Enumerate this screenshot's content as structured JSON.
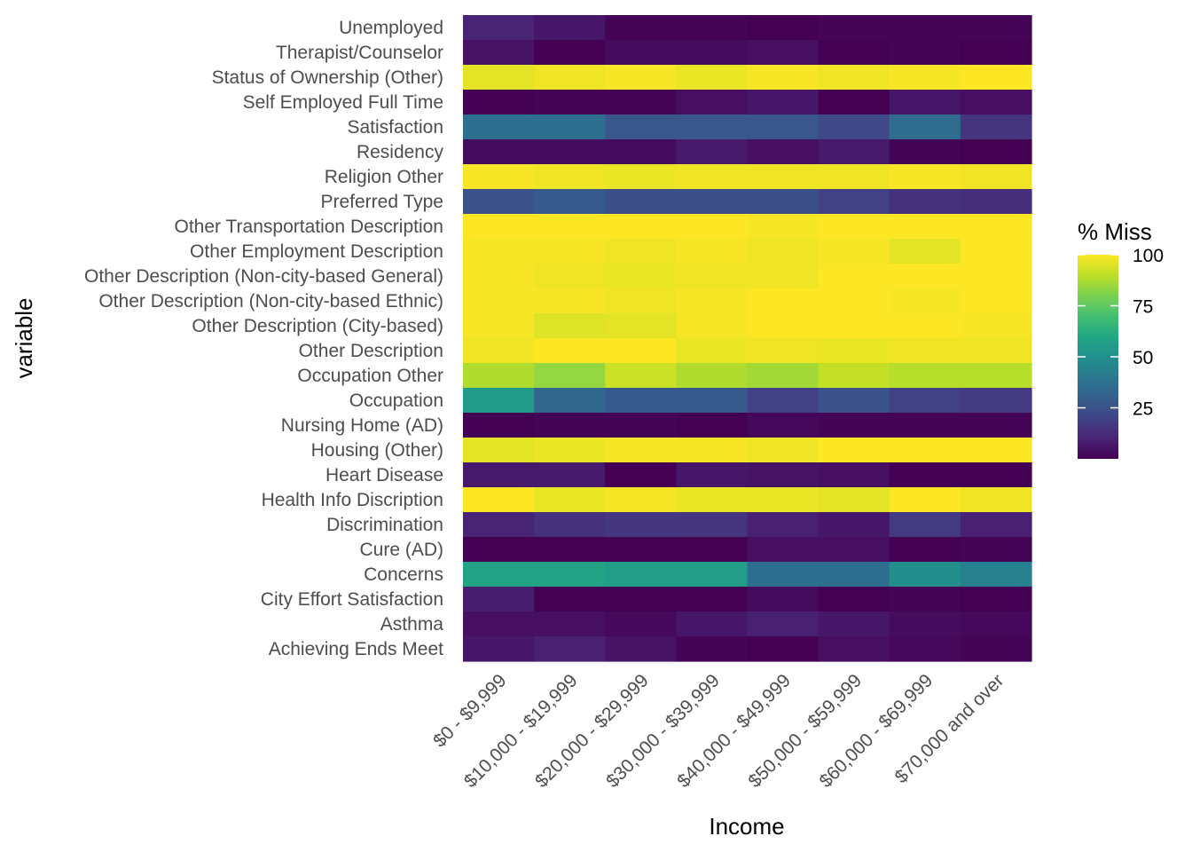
{
  "chart_data": {
    "type": "heatmap",
    "xlabel": "Income",
    "ylabel": "variable",
    "x_categories": [
      "$0 - $9,999",
      "$10,000 - $19,999",
      "$20,000 - $29,999",
      "$30,000 - $39,999",
      "$40,000 - $49,999",
      "$50,000 - $59,999",
      "$60,000 - $69,999",
      "$70,000 and over"
    ],
    "y_categories": [
      "Unemployed",
      "Therapist/Counselor",
      "Status of Ownership (Other)",
      "Self Employed Full Time",
      "Satisfaction",
      "Residency",
      "Religion Other",
      "Preferred Type",
      "Other Transportation Description",
      "Other Employment Description",
      "Other Description (Non-city-based General)",
      "Other Description (Non-city-based Ethnic)",
      "Other Description (City-based)",
      "Other Description",
      "Occupation Other",
      "Occupation",
      "Nursing Home (AD)",
      "Housing (Other)",
      "Heart Disease",
      "Health Info Discription",
      "Discrimination",
      "Cure (AD)",
      "Concerns",
      "City Effort Satisfaction",
      "Asthma",
      "Achieving Ends Meet"
    ],
    "values": [
      [
        10,
        6,
        1,
        1,
        0,
        1,
        1,
        1
      ],
      [
        5,
        0,
        3,
        3,
        4,
        0,
        1,
        0
      ],
      [
        96,
        98,
        99,
        97,
        99,
        98,
        99,
        100
      ],
      [
        0,
        1,
        1,
        4,
        6,
        0,
        6,
        4
      ],
      [
        36,
        36,
        27,
        27,
        27,
        22,
        35,
        15
      ],
      [
        3,
        3,
        3,
        7,
        4,
        7,
        1,
        0
      ],
      [
        99,
        98,
        97,
        98,
        98,
        98,
        99,
        98
      ],
      [
        25,
        28,
        24,
        24,
        24,
        19,
        14,
        13
      ],
      [
        100,
        100,
        100,
        100,
        99,
        100,
        100,
        100
      ],
      [
        99,
        99,
        98,
        99,
        98,
        99,
        96,
        100
      ],
      [
        99,
        98,
        97,
        98,
        98,
        100,
        100,
        100
      ],
      [
        99,
        99,
        98,
        99,
        100,
        100,
        99,
        100
      ],
      [
        99,
        95,
        96,
        99,
        100,
        100,
        100,
        99
      ],
      [
        98,
        100,
        100,
        97,
        98,
        97,
        98,
        98
      ],
      [
        88,
        84,
        92,
        88,
        86,
        91,
        89,
        89
      ],
      [
        54,
        33,
        28,
        28,
        19,
        25,
        19,
        17
      ],
      [
        0,
        1,
        1,
        0,
        2,
        1,
        1,
        1
      ],
      [
        96,
        97,
        99,
        99,
        98,
        100,
        100,
        100
      ],
      [
        7,
        7,
        0,
        6,
        5,
        4,
        0,
        0
      ],
      [
        100,
        97,
        99,
        97,
        97,
        96,
        100,
        98
      ],
      [
        10,
        14,
        16,
        15,
        9,
        6,
        17,
        9
      ],
      [
        0,
        0,
        0,
        0,
        4,
        4,
        0,
        1
      ],
      [
        58,
        58,
        55,
        55,
        36,
        36,
        49,
        43
      ],
      [
        8,
        0,
        0,
        0,
        3,
        0,
        1,
        0
      ],
      [
        4,
        4,
        2,
        6,
        9,
        6,
        3,
        2
      ],
      [
        6,
        9,
        5,
        1,
        0,
        4,
        2,
        1
      ]
    ],
    "color_scale": {
      "name": "% Miss",
      "ticks": [
        25,
        50,
        75,
        100
      ],
      "min": 0,
      "max": 100,
      "colors": [
        "#440154",
        "#482475",
        "#414487",
        "#355f8d",
        "#2a788e",
        "#21918c",
        "#22a884",
        "#44bf70",
        "#7ad151",
        "#bddf26",
        "#fde725"
      ]
    },
    "grid": true,
    "legend_position": "right"
  }
}
